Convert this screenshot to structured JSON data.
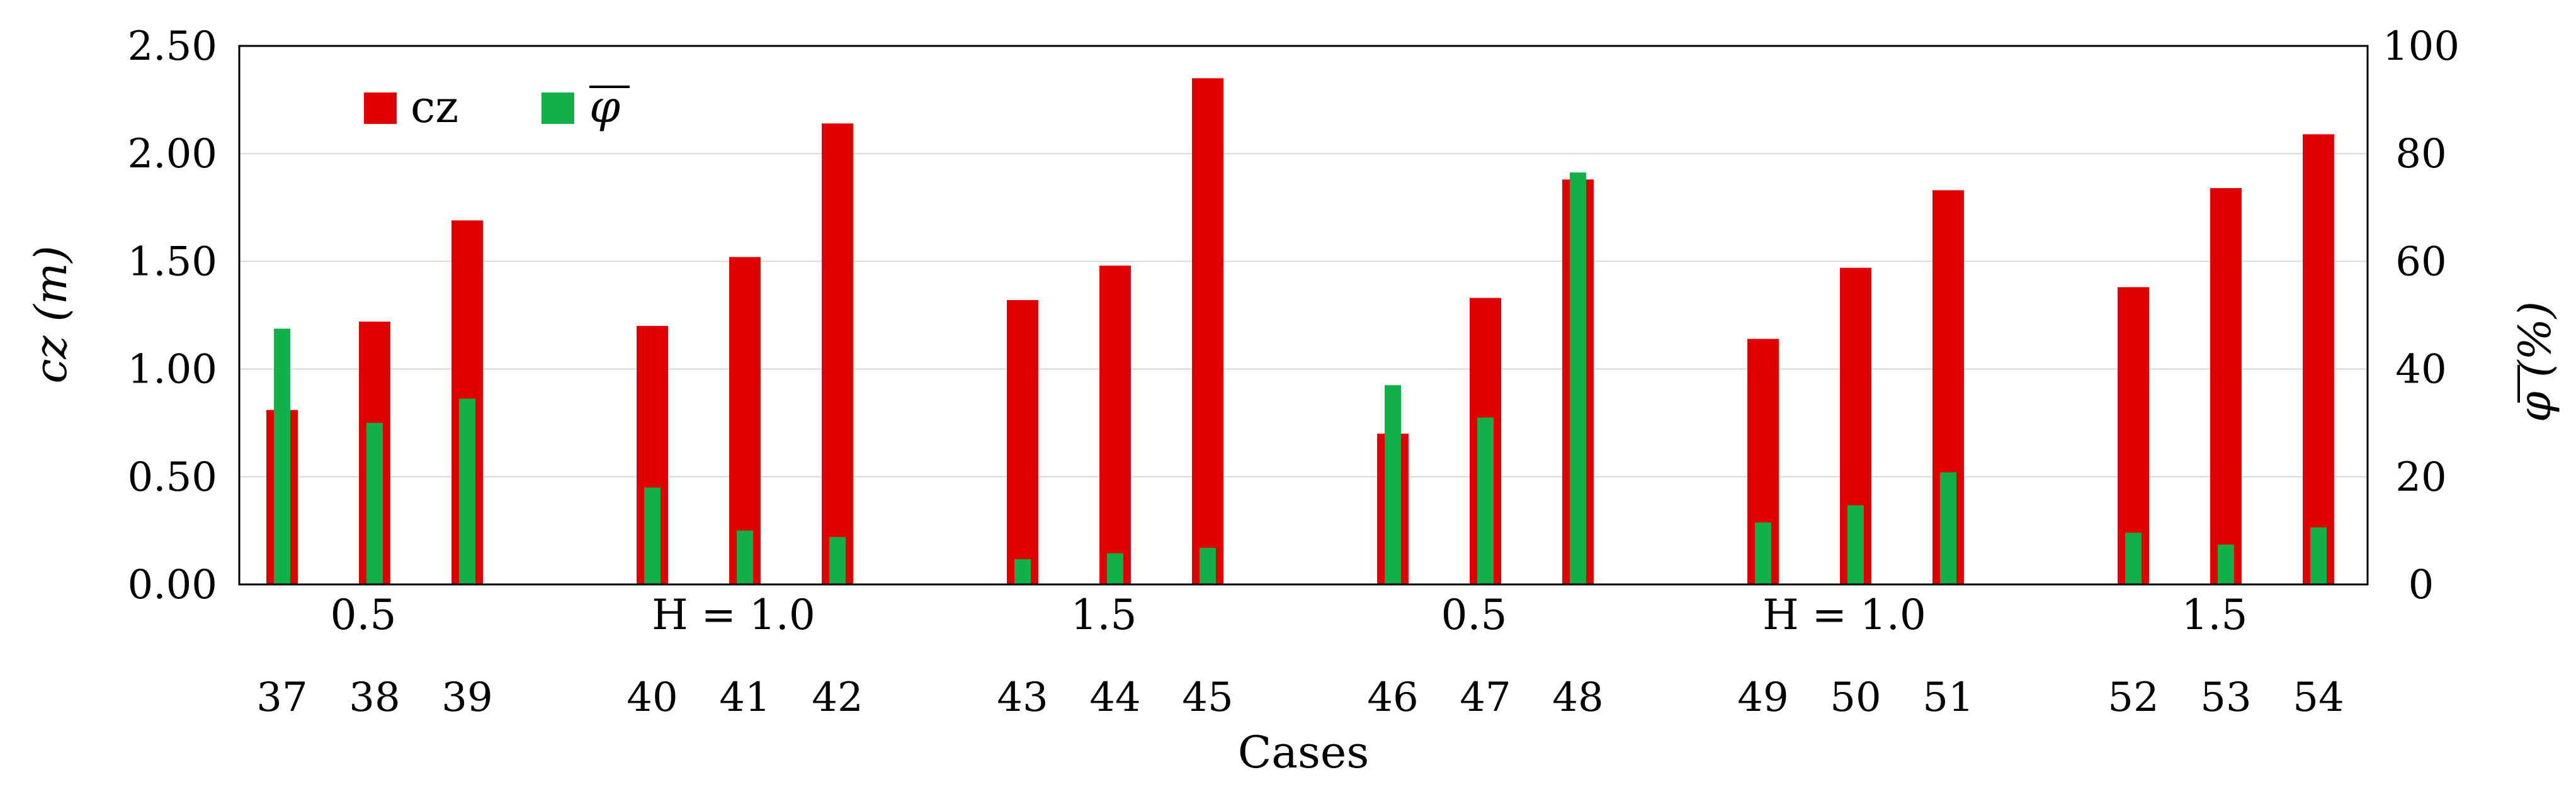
{
  "chart_data": {
    "type": "bar",
    "xlabel": "Cases",
    "ylabel_left": "cz  (m)",
    "ylabel_right": "φ (%)",
    "ylim_left": [
      0,
      2.5
    ],
    "ylim_right": [
      0,
      100
    ],
    "yticks_left": [
      "0.00",
      "0.50",
      "1.00",
      "1.50",
      "2.00",
      "2.50"
    ],
    "yticks_right": [
      "0",
      "20",
      "40",
      "60",
      "80",
      "100"
    ],
    "grid": true,
    "legend_position": "top-left",
    "categories": [
      "37",
      "38",
      "39",
      "40",
      "41",
      "42",
      "43",
      "44",
      "45",
      "46",
      "47",
      "48",
      "49",
      "50",
      "51",
      "52",
      "53",
      "54"
    ],
    "groups": [
      {
        "label": "0.5",
        "cases": [
          "37",
          "38",
          "39"
        ]
      },
      {
        "label": "H = 1.0",
        "cases": [
          "40",
          "41",
          "42"
        ]
      },
      {
        "label": "1.5",
        "cases": [
          "43",
          "44",
          "45"
        ]
      },
      {
        "label": "0.5",
        "cases": [
          "46",
          "47",
          "48"
        ]
      },
      {
        "label": "H = 1.0",
        "cases": [
          "49",
          "50",
          "51"
        ]
      },
      {
        "label": "1.5",
        "cases": [
          "52",
          "53",
          "54"
        ]
      }
    ],
    "series": [
      {
        "name": "cz",
        "axis": "left",
        "color": "#e00000",
        "values": [
          0.81,
          1.22,
          1.69,
          1.2,
          1.52,
          2.14,
          1.32,
          1.48,
          2.35,
          0.7,
          1.33,
          1.88,
          1.14,
          1.47,
          1.83,
          1.38,
          1.84,
          2.09
        ]
      },
      {
        "name": "φ",
        "axis": "right",
        "color": "#12b04a",
        "values": [
          47.5,
          30,
          34.5,
          18,
          10,
          8.8,
          4.7,
          5.8,
          6.8,
          37,
          31,
          76.5,
          11.5,
          14.7,
          20.8,
          9.6,
          7.4,
          10.6
        ]
      }
    ]
  }
}
